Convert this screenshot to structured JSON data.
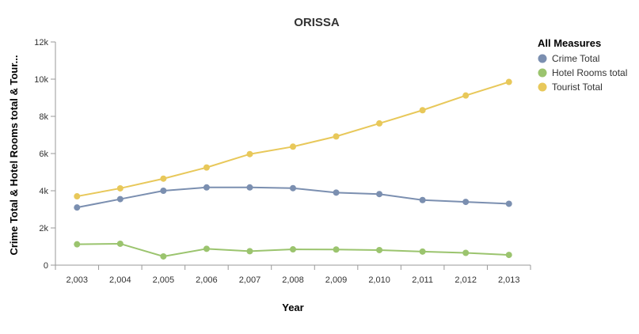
{
  "chart_data": {
    "type": "line",
    "title": "ORISSA",
    "xlabel": "Year",
    "ylabel": "Crime Total & Hotel Rooms total & Tour...",
    "x": [
      "2,003",
      "2,004",
      "2,005",
      "2,006",
      "2,007",
      "2,008",
      "2,009",
      "2,010",
      "2,011",
      "2,012",
      "2,013"
    ],
    "ylim": [
      0,
      12000
    ],
    "yticks": [
      {
        "value": 0,
        "label": "0"
      },
      {
        "value": 2000,
        "label": "2k"
      },
      {
        "value": 4000,
        "label": "4k"
      },
      {
        "value": 6000,
        "label": "6k"
      },
      {
        "value": 8000,
        "label": "8k"
      },
      {
        "value": 10000,
        "label": "10k"
      },
      {
        "value": 12000,
        "label": "12k"
      }
    ],
    "grid": false,
    "legend_title": "All Measures",
    "legend_position": "top-right",
    "series": [
      {
        "name": "Crime Total",
        "color": "#7b8fb0",
        "values": [
          3100,
          3550,
          4000,
          4180,
          4180,
          4140,
          3900,
          3820,
          3500,
          3400,
          3300
        ]
      },
      {
        "name": "Hotel Rooms total",
        "color": "#9bc46e",
        "values": [
          1120,
          1150,
          470,
          880,
          750,
          850,
          840,
          810,
          730,
          660,
          550
        ]
      },
      {
        "name": "Tourist Total",
        "color": "#e8c85a",
        "values": [
          3700,
          4130,
          4650,
          5250,
          5970,
          6370,
          6920,
          7620,
          8330,
          9120,
          9850
        ]
      }
    ]
  }
}
